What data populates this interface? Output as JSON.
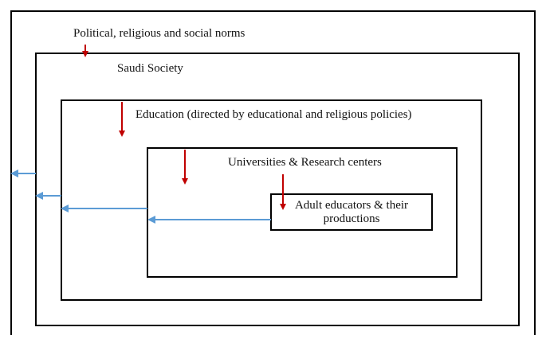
{
  "nodes": [
    {
      "label": "Political, religious and social norms"
    },
    {
      "label": "Saudi Society"
    },
    {
      "label": "Education (directed by educational and religious policies)"
    },
    {
      "label": "Universities & Research  centers"
    },
    {
      "label": "Adult educators & their productions"
    }
  ]
}
